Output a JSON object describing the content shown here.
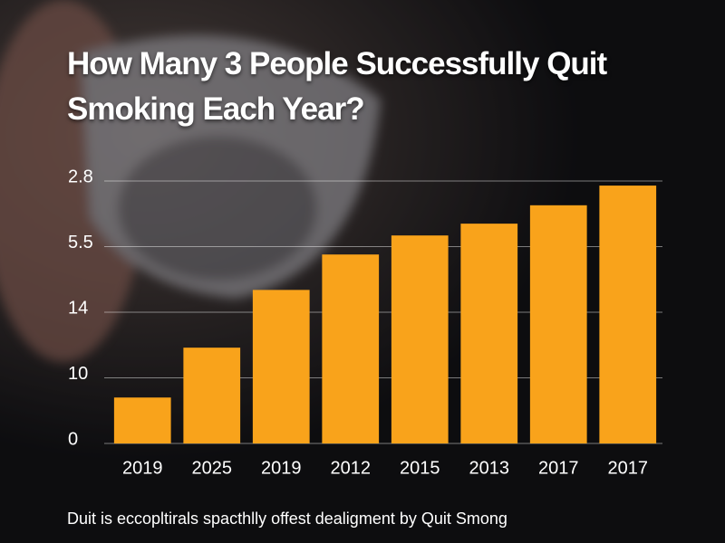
{
  "chart_data": {
    "type": "bar",
    "title": "How Many 3 People Successfully Quit Smoking Each Year?",
    "categories": [
      "2019",
      "2025",
      "2019",
      "2012",
      "2015",
      "2013",
      "2017",
      "2017"
    ],
    "values": [
      7.0,
      14.6,
      23.4,
      28.8,
      31.7,
      33.5,
      36.3,
      39.3
    ],
    "color": "#f9a31b",
    "ylim": [
      0,
      40
    ],
    "yticks": [
      0,
      10,
      {
        "value": 20,
        "label": "14"
      },
      {
        "value": 30,
        "label": "5.5"
      },
      {
        "value": 40,
        "label": "2.8"
      }
    ],
    "grid": true,
    "footnote": "Duit is eccopltirals spacthlly offest dealigment by Quit Smong"
  }
}
